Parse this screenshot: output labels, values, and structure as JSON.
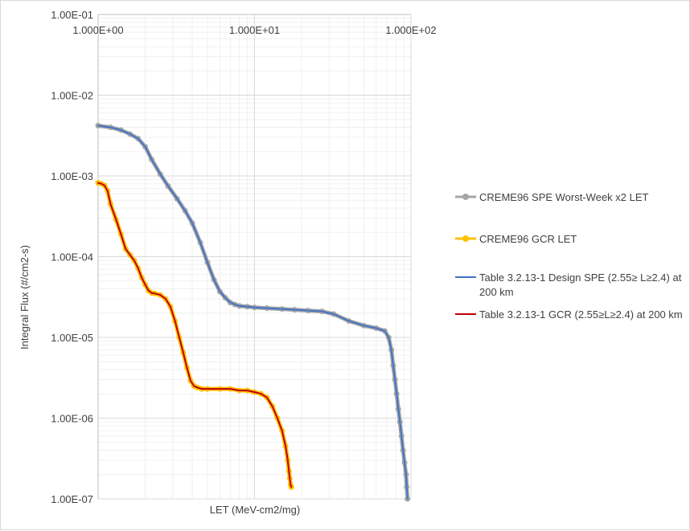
{
  "chart_data": {
    "type": "line",
    "title": "",
    "xlabel": "LET (MeV-cm2/mg)",
    "ylabel": "Integral Flux (#/cm2-s)",
    "x_scale": "log",
    "y_scale": "log",
    "xlim": [
      1,
      100
    ],
    "ylim": [
      1e-07,
      0.1
    ],
    "x_ticks": [
      {
        "value": 1,
        "label": "1.000E+00"
      },
      {
        "value": 10,
        "label": "1.000E+01"
      },
      {
        "value": 100,
        "label": "1.000E+02"
      }
    ],
    "y_ticks": [
      {
        "value": 0.1,
        "label": "1.00E-01"
      },
      {
        "value": 0.01,
        "label": "1.00E-02"
      },
      {
        "value": 0.001,
        "label": "1.00E-03"
      },
      {
        "value": 0.0001,
        "label": "1.00E-04"
      },
      {
        "value": 1e-05,
        "label": "1.00E-05"
      },
      {
        "value": 1e-06,
        "label": "1.00E-06"
      },
      {
        "value": 1e-07,
        "label": "1.00E-07"
      }
    ],
    "x_axis_position": "top",
    "grid": true,
    "minor_grid": true,
    "legend_position": "right",
    "series": [
      {
        "name": "CREME96 SPE Worst-Week x2 LET",
        "color": "#a5a5a5",
        "line_width": 5,
        "marker": "circle",
        "x": [
          1.0,
          1.2,
          1.4,
          1.6,
          1.8,
          2.0,
          2.2,
          2.5,
          2.8,
          3.2,
          3.6,
          4.0,
          4.5,
          5.0,
          5.5,
          6.0,
          6.5,
          7.0,
          7.5,
          8.0,
          9.0,
          10,
          12,
          15,
          18,
          22,
          27,
          32,
          40,
          50,
          60,
          68,
          72,
          75,
          77,
          79,
          81,
          83,
          85,
          87,
          89,
          91,
          93,
          94,
          95
        ],
        "y": [
          0.0042,
          0.004,
          0.0037,
          0.0033,
          0.0029,
          0.0023,
          0.0016,
          0.00105,
          0.00075,
          0.00052,
          0.00037,
          0.00026,
          0.00015,
          8.5e-05,
          5.2e-05,
          3.7e-05,
          3.1e-05,
          2.7e-05,
          2.55e-05,
          2.45e-05,
          2.4e-05,
          2.35e-05,
          2.3e-05,
          2.25e-05,
          2.2e-05,
          2.15e-05,
          2.1e-05,
          1.95e-05,
          1.6e-05,
          1.4e-05,
          1.3e-05,
          1.2e-05,
          1e-05,
          7e-06,
          4.5e-06,
          3e-06,
          2e-06,
          1.3e-06,
          9e-07,
          6e-07,
          4e-07,
          2.8e-07,
          2e-07,
          1.4e-07,
          1e-07
        ]
      },
      {
        "name": "CREME96 GCR LET",
        "color": "#ffc000",
        "line_width": 5,
        "marker": "circle",
        "x": [
          1.0,
          1.05,
          1.1,
          1.15,
          1.2,
          1.3,
          1.4,
          1.5,
          1.6,
          1.7,
          1.8,
          1.9,
          2.0,
          2.1,
          2.2,
          2.3,
          2.5,
          2.7,
          2.9,
          3.1,
          3.3,
          3.5,
          3.7,
          3.9,
          4.1,
          4.3,
          4.6,
          5.0,
          6.0,
          7.0,
          8.0,
          9.0,
          10,
          11,
          12,
          13,
          14,
          15,
          15.8,
          16.3,
          16.6,
          16.8,
          17.0,
          17.2
        ],
        "y": [
          0.00082,
          0.0008,
          0.00076,
          0.00065,
          0.00045,
          0.00029,
          0.00019,
          0.000125,
          0.000105,
          9e-05,
          7.2e-05,
          5.5e-05,
          4.5e-05,
          3.8e-05,
          3.55e-05,
          3.5e-05,
          3.35e-05,
          3e-05,
          2.4e-05,
          1.6e-05,
          1e-05,
          6.5e-06,
          4.2e-06,
          2.9e-06,
          2.5e-06,
          2.4e-06,
          2.3e-06,
          2.3e-06,
          2.3e-06,
          2.3e-06,
          2.2e-06,
          2.2e-06,
          2.1e-06,
          2e-06,
          1.8e-06,
          1.4e-06,
          1e-06,
          7e-07,
          4.5e-07,
          3e-07,
          2.2e-07,
          1.8e-07,
          1.5e-07,
          1.4e-07
        ]
      },
      {
        "name": "Table 3.2.13-1 Design SPE (2.55≥ L≥2.4) at 200 km",
        "color": "#4472c4",
        "line_width": 2,
        "marker": "none",
        "x": [
          1.0,
          1.2,
          1.4,
          1.6,
          1.8,
          2.0,
          2.2,
          2.5,
          2.8,
          3.2,
          3.6,
          4.0,
          4.5,
          5.0,
          5.5,
          6.0,
          6.5,
          7.0,
          7.5,
          8.0,
          9.0,
          10,
          12,
          15,
          18,
          22,
          27,
          32,
          40,
          50,
          60,
          68,
          72,
          75,
          77,
          79,
          81,
          83,
          85,
          87,
          89,
          91,
          93,
          94,
          95
        ],
        "y": [
          0.0042,
          0.004,
          0.0037,
          0.0033,
          0.0029,
          0.0023,
          0.0016,
          0.00105,
          0.00075,
          0.00052,
          0.00037,
          0.00026,
          0.00015,
          8.5e-05,
          5.2e-05,
          3.7e-05,
          3.1e-05,
          2.7e-05,
          2.55e-05,
          2.45e-05,
          2.4e-05,
          2.35e-05,
          2.3e-05,
          2.25e-05,
          2.2e-05,
          2.15e-05,
          2.1e-05,
          1.95e-05,
          1.6e-05,
          1.4e-05,
          1.3e-05,
          1.2e-05,
          1e-05,
          7e-06,
          4.5e-06,
          3e-06,
          2e-06,
          1.3e-06,
          9e-07,
          6e-07,
          4e-07,
          2.8e-07,
          2e-07,
          1.4e-07,
          1e-07
        ]
      },
      {
        "name": "Table 3.2.13-1 GCR (2.55≥L≥2.4) at 200 km",
        "color": "#c00000",
        "line_width": 2,
        "marker": "none",
        "x": [
          1.0,
          1.05,
          1.1,
          1.15,
          1.2,
          1.3,
          1.4,
          1.5,
          1.6,
          1.7,
          1.8,
          1.9,
          2.0,
          2.1,
          2.2,
          2.3,
          2.5,
          2.7,
          2.9,
          3.1,
          3.3,
          3.5,
          3.7,
          3.9,
          4.1,
          4.3,
          4.6,
          5.0,
          6.0,
          7.0,
          8.0,
          9.0,
          10,
          11,
          12,
          13,
          14,
          15,
          15.8,
          16.3,
          16.6,
          16.8,
          17.0,
          17.2
        ],
        "y": [
          0.00082,
          0.0008,
          0.00076,
          0.00065,
          0.00045,
          0.00029,
          0.00019,
          0.000125,
          0.000105,
          9e-05,
          7.2e-05,
          5.5e-05,
          4.5e-05,
          3.8e-05,
          3.55e-05,
          3.5e-05,
          3.35e-05,
          3e-05,
          2.4e-05,
          1.6e-05,
          1e-05,
          6.5e-06,
          4.2e-06,
          2.9e-06,
          2.5e-06,
          2.4e-06,
          2.3e-06,
          2.3e-06,
          2.3e-06,
          2.3e-06,
          2.2e-06,
          2.2e-06,
          2.1e-06,
          2e-06,
          1.8e-06,
          1.4e-06,
          1e-06,
          7e-07,
          4.5e-07,
          3e-07,
          2.2e-07,
          1.8e-07,
          1.5e-07,
          1.4e-07
        ]
      }
    ]
  },
  "legend": {
    "items": [
      {
        "label": "CREME96 SPE Worst-Week x2 LET",
        "color": "#a5a5a5",
        "marker": "circle"
      },
      {
        "label": "CREME96 GCR LET",
        "color": "#ffc000",
        "marker": "circle"
      },
      {
        "label": "Table 3.2.13-1 Design SPE (2.55≥ L≥2.4) at 200 km",
        "color": "#4472c4",
        "marker": "none"
      },
      {
        "label": "Table 3.2.13-1 GCR (2.55≥L≥2.4) at 200 km",
        "color": "#c00000",
        "marker": "none"
      }
    ]
  }
}
